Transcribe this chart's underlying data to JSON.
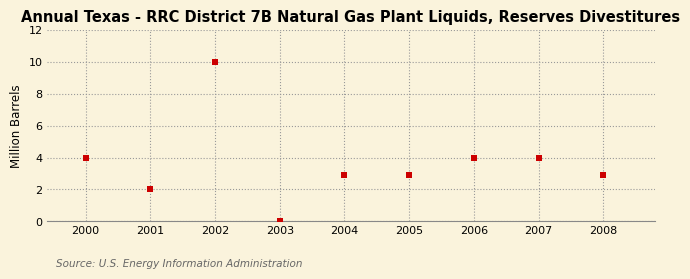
{
  "title": "Annual Texas - RRC District 7B Natural Gas Plant Liquids, Reserves Divestitures",
  "ylabel": "Million Barrels",
  "source": "Source: U.S. Energy Information Administration",
  "background_color": "#FAF3DC",
  "years": [
    2000,
    2001,
    2002,
    2003,
    2004,
    2005,
    2006,
    2007,
    2008
  ],
  "values": [
    4.0,
    2.0,
    10.0,
    0.05,
    2.9,
    2.9,
    4.0,
    4.0,
    2.9
  ],
  "marker_color": "#CC0000",
  "marker": "s",
  "marker_size": 4,
  "xlim": [
    1999.4,
    2008.8
  ],
  "ylim": [
    0,
    12
  ],
  "yticks": [
    0,
    2,
    4,
    6,
    8,
    10,
    12
  ],
  "xticks": [
    2000,
    2001,
    2002,
    2003,
    2004,
    2005,
    2006,
    2007,
    2008
  ],
  "grid_color": "#999999",
  "grid_linestyle": ":",
  "grid_linewidth": 0.8,
  "title_fontsize": 10.5,
  "axis_label_fontsize": 8.5,
  "tick_fontsize": 8,
  "source_fontsize": 7.5,
  "spine_color": "#888888"
}
